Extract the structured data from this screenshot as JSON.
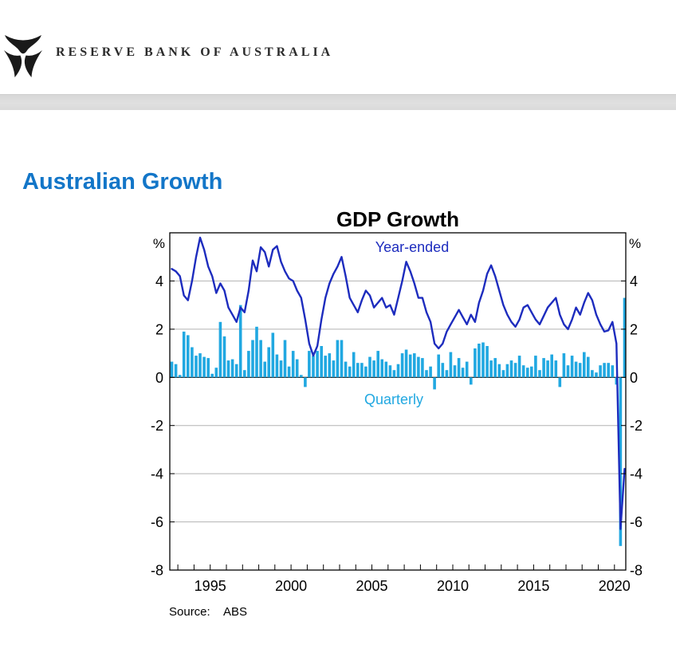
{
  "header": {
    "brand": "RESERVE BANK OF AUSTRALIA",
    "logo": "rba-wings-logo"
  },
  "page": {
    "title": "Australian Growth"
  },
  "colors": {
    "heading_blue": "#1376C8",
    "grid_gray": "#B3B3B3",
    "axis_black": "#000000",
    "year_ended_blue": "#1D2CBE",
    "quarterly_cyan": "#21A8E1"
  },
  "chart_data": {
    "type": "bar-line-combo",
    "title": "GDP Growth",
    "source_label": "Source:",
    "source_value": "ABS",
    "y_axis": {
      "unit_label": "%",
      "min": -8,
      "max": 6,
      "tick_values": [
        4,
        2,
        0,
        -2,
        -4,
        -6,
        -8
      ],
      "tick_labels": [
        "4",
        "2",
        "0",
        "-2",
        "-4",
        "-6",
        "-8"
      ],
      "gridline_values": [
        4,
        2,
        -2,
        -4,
        -6
      ],
      "zero_line_value": 0
    },
    "x_axis": {
      "min": 1992.5,
      "max": 2020.7,
      "labeled_years": [
        1995,
        2000,
        2005,
        2010,
        2015,
        2020
      ],
      "minor_tick_years_from": 1993,
      "minor_tick_years_to": 2020
    },
    "start_period": {
      "year": 1992,
      "quarter": 3
    },
    "period_step_years": 0.25,
    "series": [
      {
        "name": "Year-ended",
        "type": "line",
        "color": "#1D2CBE",
        "values": [
          4.5,
          4.4,
          4.2,
          3.4,
          3.2,
          4.0,
          5.0,
          5.8,
          5.3,
          4.6,
          4.2,
          3.5,
          3.9,
          3.6,
          2.9,
          2.6,
          2.3,
          2.9,
          2.7,
          3.6,
          4.85,
          4.4,
          5.4,
          5.2,
          4.6,
          5.3,
          5.45,
          4.8,
          4.4,
          4.1,
          4.0,
          3.6,
          3.3,
          2.4,
          1.4,
          0.9,
          1.3,
          2.4,
          3.3,
          3.9,
          4.3,
          4.6,
          5.0,
          4.2,
          3.3,
          3.0,
          2.7,
          3.2,
          3.6,
          3.4,
          2.9,
          3.1,
          3.3,
          2.9,
          3.0,
          2.6,
          3.3,
          4.0,
          4.8,
          4.4,
          3.9,
          3.3,
          3.3,
          2.7,
          2.3,
          1.4,
          1.2,
          1.4,
          1.9,
          2.2,
          2.5,
          2.8,
          2.5,
          2.2,
          2.6,
          2.3,
          3.1,
          3.6,
          4.3,
          4.65,
          4.2,
          3.6,
          3.0,
          2.6,
          2.3,
          2.1,
          2.4,
          2.9,
          3.0,
          2.7,
          2.4,
          2.2,
          2.55,
          2.9,
          3.1,
          3.3,
          2.6,
          2.2,
          2.0,
          2.4,
          2.9,
          2.6,
          3.1,
          3.5,
          3.2,
          2.6,
          2.2,
          1.9,
          1.95,
          2.3,
          1.4,
          -6.3,
          -3.8
        ]
      },
      {
        "name": "Quarterly",
        "type": "bar",
        "color": "#21A8E1",
        "values": [
          0.65,
          0.55,
          0.1,
          1.9,
          1.75,
          1.25,
          0.9,
          1.0,
          0.85,
          0.8,
          0.15,
          0.4,
          2.3,
          1.7,
          0.7,
          0.75,
          0.55,
          3.0,
          0.3,
          1.1,
          1.55,
          2.1,
          1.55,
          0.65,
          1.25,
          1.85,
          0.95,
          0.7,
          1.55,
          0.45,
          1.1,
          0.75,
          0.1,
          -0.4,
          1.1,
          0.9,
          1.1,
          1.3,
          0.9,
          1.0,
          0.7,
          1.55,
          1.55,
          0.65,
          0.45,
          1.05,
          0.6,
          0.6,
          0.45,
          0.85,
          0.7,
          1.1,
          0.75,
          0.65,
          0.5,
          0.3,
          0.55,
          1.0,
          1.15,
          0.95,
          1.0,
          0.85,
          0.8,
          0.3,
          0.45,
          -0.5,
          0.95,
          0.6,
          0.3,
          1.05,
          0.5,
          0.8,
          0.4,
          0.65,
          -0.3,
          1.2,
          1.4,
          1.45,
          1.3,
          0.7,
          0.8,
          0.55,
          0.3,
          0.55,
          0.7,
          0.6,
          0.9,
          0.5,
          0.4,
          0.45,
          0.9,
          0.3,
          0.8,
          0.7,
          0.95,
          0.7,
          -0.4,
          1.0,
          0.5,
          0.9,
          0.65,
          0.6,
          1.05,
          0.85,
          0.3,
          0.2,
          0.5,
          0.6,
          0.6,
          0.5,
          -0.3,
          -7.0,
          3.3
        ]
      }
    ]
  }
}
